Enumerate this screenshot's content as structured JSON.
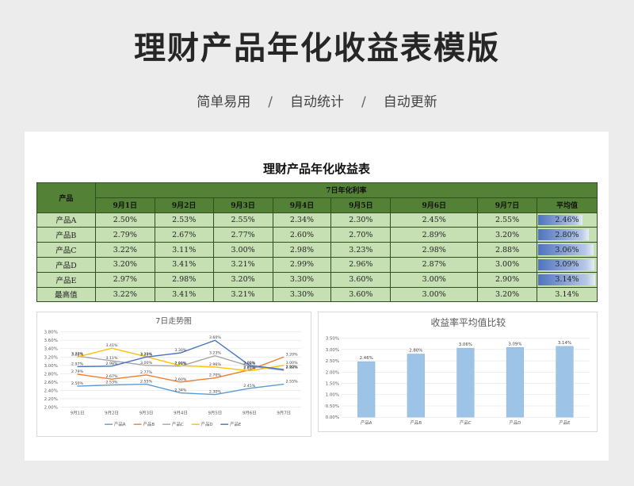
{
  "header": {
    "title": "理财产品年化收益表模版",
    "tags": [
      "简单易用",
      "自动统计",
      "自动更新"
    ],
    "separator": "/"
  },
  "table": {
    "title": "理财产品年化收益表",
    "product_header": "产品",
    "group_header": "7日年化利率",
    "dates": [
      "9月1日",
      "9月2日",
      "9月3日",
      "9月4日",
      "9月5日",
      "9月6日",
      "9月7日"
    ],
    "avg_header": "平均值",
    "rows": [
      {
        "name": "产品A",
        "values": [
          "2.50%",
          "2.53%",
          "2.55%",
          "2.34%",
          "2.30%",
          "2.45%",
          "2.55%"
        ],
        "avg": "2.46%",
        "avg_value": 2.46
      },
      {
        "name": "产品B",
        "values": [
          "2.79%",
          "2.67%",
          "2.77%",
          "2.60%",
          "2.70%",
          "2.89%",
          "3.20%"
        ],
        "avg": "2.80%",
        "avg_value": 2.8
      },
      {
        "name": "产品C",
        "values": [
          "3.22%",
          "3.11%",
          "3.00%",
          "2.98%",
          "3.23%",
          "2.98%",
          "2.88%"
        ],
        "avg": "3.06%",
        "avg_value": 3.06
      },
      {
        "name": "产品D",
        "values": [
          "3.20%",
          "3.41%",
          "3.21%",
          "2.99%",
          "2.96%",
          "2.87%",
          "3.00%"
        ],
        "avg": "3.09%",
        "avg_value": 3.09
      },
      {
        "name": "产品E",
        "values": [
          "2.97%",
          "2.98%",
          "3.20%",
          "3.30%",
          "3.60%",
          "3.00%",
          "2.90%"
        ],
        "avg": "3.14%",
        "avg_value": 3.14
      }
    ],
    "max_row": {
      "name": "最高值",
      "values": [
        "3.22%",
        "3.41%",
        "3.21%",
        "3.30%",
        "3.60%",
        "3.00%",
        "3.20%"
      ],
      "avg": "3.14%"
    }
  },
  "chart_data": [
    {
      "type": "line",
      "title": "7日走势图",
      "categories": [
        "9月1日",
        "9月2日",
        "9月3日",
        "9月4日",
        "9月5日",
        "9月6日",
        "9月7日"
      ],
      "ylim": [
        2.0,
        3.8
      ],
      "yticks": [
        "2.00%",
        "2.20%",
        "2.40%",
        "2.60%",
        "2.80%",
        "3.00%",
        "3.20%",
        "3.40%",
        "3.60%",
        "3.80%"
      ],
      "grid": true,
      "legend": "bottom",
      "series": [
        {
          "name": "产品A",
          "color": "#5b9bd5",
          "values": [
            2.5,
            2.53,
            2.55,
            2.34,
            2.3,
            2.45,
            2.55
          ]
        },
        {
          "name": "产品B",
          "color": "#ed7d31",
          "values": [
            2.79,
            2.67,
            2.77,
            2.6,
            2.7,
            2.89,
            3.2
          ]
        },
        {
          "name": "产品C",
          "color": "#a5a5a5",
          "values": [
            3.22,
            3.11,
            3.0,
            2.98,
            3.23,
            2.98,
            2.88
          ]
        },
        {
          "name": "产品D",
          "color": "#ffc000",
          "values": [
            3.2,
            3.41,
            3.21,
            2.99,
            2.96,
            2.87,
            3.0
          ]
        },
        {
          "name": "产品E",
          "color": "#4472c4",
          "values": [
            2.97,
            2.98,
            3.2,
            3.3,
            3.6,
            3.0,
            2.9
          ]
        }
      ]
    },
    {
      "type": "bar",
      "title": "收益率平均值比较",
      "categories": [
        "产品A",
        "产品B",
        "产品C",
        "产品D",
        "产品E"
      ],
      "values": [
        2.46,
        2.8,
        3.06,
        3.09,
        3.14
      ],
      "labels": [
        "2.46%",
        "2.80%",
        "3.06%",
        "3.09%",
        "3.14%"
      ],
      "ylim": [
        0.0,
        3.5
      ],
      "yticks": [
        "0.00%",
        "0.50%",
        "1.00%",
        "1.50%",
        "2.00%",
        "2.50%",
        "3.00%",
        "3.50%"
      ],
      "grid": true,
      "color": "#9dc3e6"
    }
  ]
}
